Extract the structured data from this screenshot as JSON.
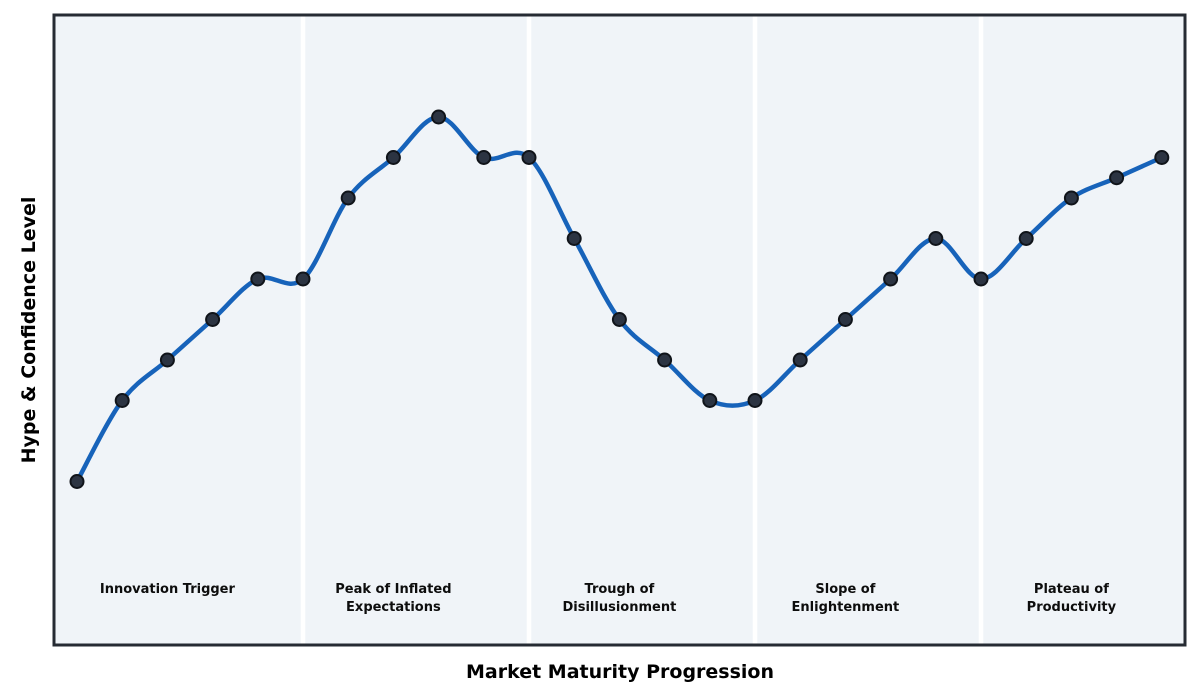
{
  "chart_data": {
    "type": "line",
    "title": "",
    "xlabel": "Market Maturity Progression",
    "ylabel": "Hype & Confidence Level",
    "x": [
      0,
      1,
      2,
      3,
      4,
      5,
      6,
      7,
      8,
      9,
      10,
      11,
      12,
      13,
      14,
      15,
      16,
      17,
      18,
      19,
      20,
      21,
      22,
      23,
      24
    ],
    "values": [
      10,
      30,
      40,
      50,
      60,
      60,
      80,
      90,
      100,
      90,
      90,
      70,
      50,
      40,
      30,
      30,
      40,
      50,
      60,
      70,
      60,
      70,
      80,
      85,
      90
    ],
    "xlim": [
      -0.5,
      24.5
    ],
    "ylim": [
      -30,
      125
    ],
    "grid": false,
    "legend": false,
    "axis_ticks": "none",
    "line_color": "#1763ba",
    "marker_fill_color": "#2c3442",
    "marker_edge_color": "#10141a",
    "plot_bg_color": "#f0f4f8",
    "separator_color": "#ffffff",
    "frame_color": "#262b33",
    "label_color": "#0d0d0d",
    "phases": [
      {
        "label": "Innovation Trigger",
        "start_x": 0,
        "end_x": 5,
        "label_x": 2
      },
      {
        "label": "Peak of Inflated\nExpectations",
        "start_x": 5,
        "end_x": 10,
        "label_x": 7
      },
      {
        "label": "Trough of\nDisillusionment",
        "start_x": 10,
        "end_x": 15,
        "label_x": 12
      },
      {
        "label": "Slope of\nEnlightenment",
        "start_x": 15,
        "end_x": 20,
        "label_x": 17
      },
      {
        "label": "Plateau of\nProductivity",
        "start_x": 20,
        "end_x": 24,
        "label_x": 22
      }
    ]
  }
}
